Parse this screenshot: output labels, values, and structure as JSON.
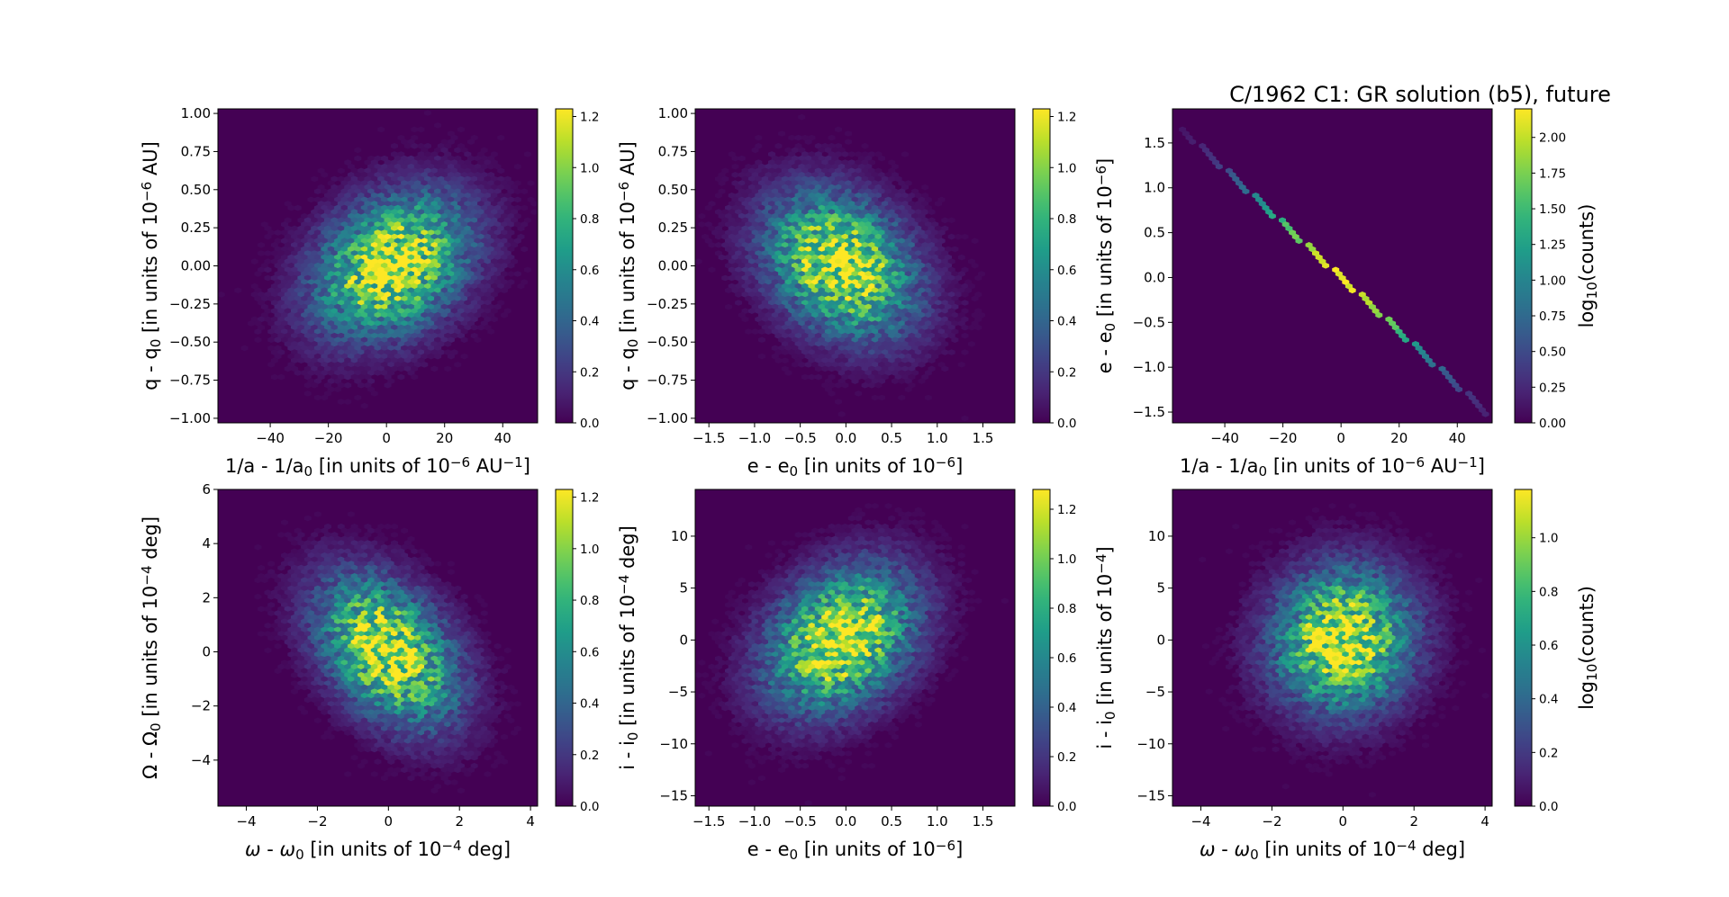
{
  "figure_title": "C/1962 C1: GR solution (b5), future",
  "colormap": [
    "#440154",
    "#482878",
    "#3e4989",
    "#31688e",
    "#26828e",
    "#1f9e89",
    "#35b779",
    "#6ece58",
    "#b5de2b",
    "#fde725"
  ],
  "background_color": "#440154",
  "colorbar_label": "log<sub>10</sub>(counts)",
  "chart_data": [
    {
      "type": "heatmap",
      "xlabel": "1/a - 1/a<sub>0</sub> [in units of 10<sup>−6</sup> AU<sup>−1</sup>]",
      "ylabel": "q - q<sub>0</sub> [in units of 10<sup>−6</sup> AU]",
      "xlim": [
        -58,
        52
      ],
      "ylim": [
        -1.03,
        1.03
      ],
      "xticks": [
        "−40",
        "−20",
        "0",
        "20",
        "40"
      ],
      "xtick_values": [
        -40,
        -20,
        0,
        20,
        40
      ],
      "yticks": [
        "−1.00",
        "−0.75",
        "−0.50",
        "−0.25",
        "0.00",
        "0.25",
        "0.50",
        "0.75",
        "1.00"
      ],
      "ytick_values": [
        -1,
        -0.75,
        -0.5,
        -0.25,
        0,
        0.25,
        0.5,
        0.75,
        1
      ],
      "cbar_ticks": [
        "0.0",
        "0.2",
        "0.4",
        "0.6",
        "0.8",
        "1.0",
        "1.2"
      ],
      "cbar_tick_values": [
        0,
        0.2,
        0.4,
        0.6,
        0.8,
        1.0,
        1.2
      ],
      "cbar_max": 1.23,
      "colorbar_label_shown": false,
      "distribution": {
        "mean": [
          2,
          0
        ],
        "sd": [
          17,
          0.3
        ],
        "corr": 0.3,
        "peak_log_counts": 1.23
      }
    },
    {
      "type": "heatmap",
      "xlabel": "e - e<sub>0</sub> [in units of 10<sup>−6</sup>]",
      "ylabel": "q - q<sub>0</sub> [in units of 10<sup>−6</sup> AU]",
      "xlim": [
        -1.65,
        1.85
      ],
      "ylim": [
        -1.03,
        1.03
      ],
      "xticks": [
        "−1.5",
        "−1.0",
        "−0.5",
        "0.0",
        "0.5",
        "1.0",
        "1.5"
      ],
      "xtick_values": [
        -1.5,
        -1,
        -0.5,
        0,
        0.5,
        1,
        1.5
      ],
      "yticks": [
        "−1.00",
        "−0.75",
        "−0.50",
        "−0.25",
        "0.00",
        "0.25",
        "0.50",
        "0.75",
        "1.00"
      ],
      "ytick_values": [
        -1,
        -0.75,
        -0.5,
        -0.25,
        0,
        0.25,
        0.5,
        0.75,
        1
      ],
      "cbar_ticks": [
        "0.0",
        "0.2",
        "0.4",
        "0.6",
        "0.8",
        "1.0",
        "1.2"
      ],
      "cbar_tick_values": [
        0,
        0.2,
        0.4,
        0.6,
        0.8,
        1.0,
        1.2
      ],
      "cbar_max": 1.23,
      "colorbar_label_shown": false,
      "distribution": {
        "mean": [
          -0.05,
          0
        ],
        "sd": [
          0.52,
          0.3
        ],
        "corr": -0.28,
        "peak_log_counts": 1.23
      }
    },
    {
      "type": "heatmap",
      "xlabel": "1/a - 1/a<sub>0</sub> [in units of 10<sup>−6</sup> AU<sup>−1</sup>]",
      "ylabel": "e - e<sub>0</sub> [in units of 10<sup>−6</sup>]",
      "xlim": [
        -58,
        52
      ],
      "ylim": [
        -1.62,
        1.88
      ],
      "xticks": [
        "−40",
        "−20",
        "0",
        "20",
        "40"
      ],
      "xtick_values": [
        -40,
        -20,
        0,
        20,
        40
      ],
      "yticks": [
        "−1.5",
        "−1.0",
        "−0.5",
        "0.0",
        "0.5",
        "1.0",
        "1.5"
      ],
      "ytick_values": [
        -1.5,
        -1,
        -0.5,
        0,
        0.5,
        1,
        1.5
      ],
      "cbar_ticks": [
        "0.00",
        "0.25",
        "0.50",
        "0.75",
        "1.00",
        "1.25",
        "1.50",
        "1.75",
        "2.00"
      ],
      "cbar_tick_values": [
        0,
        0.25,
        0.5,
        0.75,
        1,
        1.25,
        1.5,
        1.75,
        2
      ],
      "cbar_max": 2.2,
      "colorbar_label_shown": true,
      "line": {
        "x_range": [
          -55,
          50
        ],
        "intercept": 0.0,
        "slope": -0.0301,
        "peak_log_counts": 2.2
      }
    },
    {
      "type": "heatmap",
      "xlabel": "<tspan font-style='italic'>ω</tspan> - <tspan font-style='italic'>ω</tspan><sub>0</sub> [in units of 10<sup>−4</sup> deg]",
      "ylabel": "Ω - Ω<sub>0</sub> [in units of 10<sup>−4</sup> deg]",
      "xlim": [
        -4.8,
        4.2
      ],
      "ylim": [
        -5.7,
        6.0
      ],
      "xticks": [
        "−4",
        "−2",
        "0",
        "2",
        "4"
      ],
      "xtick_values": [
        -4,
        -2,
        0,
        2,
        4
      ],
      "yticks": [
        "−4",
        "−2",
        "0",
        "2",
        "4",
        "6"
      ],
      "ytick_values": [
        -4,
        -2,
        0,
        2,
        4,
        6
      ],
      "cbar_ticks": [
        "0.0",
        "0.2",
        "0.4",
        "0.6",
        "0.8",
        "1.0",
        "1.2"
      ],
      "cbar_tick_values": [
        0,
        0.2,
        0.4,
        0.6,
        0.8,
        1.0,
        1.2
      ],
      "cbar_max": 1.23,
      "colorbar_label_shown": false,
      "distribution": {
        "mean": [
          0,
          0
        ],
        "sd": [
          1.25,
          1.75
        ],
        "corr": -0.4,
        "peak_log_counts": 1.23
      }
    },
    {
      "type": "heatmap",
      "xlabel": "e - e<sub>0</sub> [in units of 10<sup>−6</sup>]",
      "ylabel": "i - i<sub>0</sub> [in units of 10<sup>−4</sup> deg]",
      "xlim": [
        -1.65,
        1.85
      ],
      "ylim": [
        -16,
        14.5
      ],
      "xticks": [
        "−1.5",
        "−1.0",
        "−0.5",
        "0.0",
        "0.5",
        "1.0",
        "1.5"
      ],
      "xtick_values": [
        -1.5,
        -1,
        -0.5,
        0,
        0.5,
        1,
        1.5
      ],
      "yticks": [
        "−15",
        "−10",
        "−5",
        "0",
        "5",
        "10"
      ],
      "ytick_values": [
        -15,
        -10,
        -5,
        0,
        5,
        10
      ],
      "cbar_ticks": [
        "0.0",
        "0.2",
        "0.4",
        "0.6",
        "0.8",
        "1.0",
        "1.2"
      ],
      "cbar_tick_values": [
        0,
        0.2,
        0.4,
        0.6,
        0.8,
        1.0,
        1.2
      ],
      "cbar_max": 1.28,
      "colorbar_label_shown": false,
      "distribution": {
        "mean": [
          -0.05,
          0
        ],
        "sd": [
          0.52,
          4.4
        ],
        "corr": 0.3,
        "peak_log_counts": 1.28
      }
    },
    {
      "type": "heatmap",
      "xlabel": "<tspan font-style='italic'>ω</tspan> - <tspan font-style='italic'>ω</tspan><sub>0</sub> [in units of 10<sup>−4</sup> deg]",
      "ylabel": "i - i<sub>0</sub> [in units of 10<sup>−4</sup>]",
      "xlim": [
        -4.8,
        4.2
      ],
      "ylim": [
        -16,
        14.5
      ],
      "xticks": [
        "−4",
        "−2",
        "0",
        "2",
        "4"
      ],
      "xtick_values": [
        -4,
        -2,
        0,
        2,
        4
      ],
      "yticks": [
        "−15",
        "−10",
        "−5",
        "0",
        "5",
        "10"
      ],
      "ytick_values": [
        -15,
        -10,
        -5,
        0,
        5,
        10
      ],
      "cbar_ticks": [
        "0.0",
        "0.2",
        "0.4",
        "0.6",
        "0.8",
        "1.0"
      ],
      "cbar_tick_values": [
        0,
        0.2,
        0.4,
        0.6,
        0.8,
        1.0
      ],
      "cbar_max": 1.18,
      "colorbar_label_shown": true,
      "distribution": {
        "mean": [
          0,
          0
        ],
        "sd": [
          1.25,
          4.4
        ],
        "corr": 0.05,
        "peak_log_counts": 1.18
      }
    }
  ]
}
